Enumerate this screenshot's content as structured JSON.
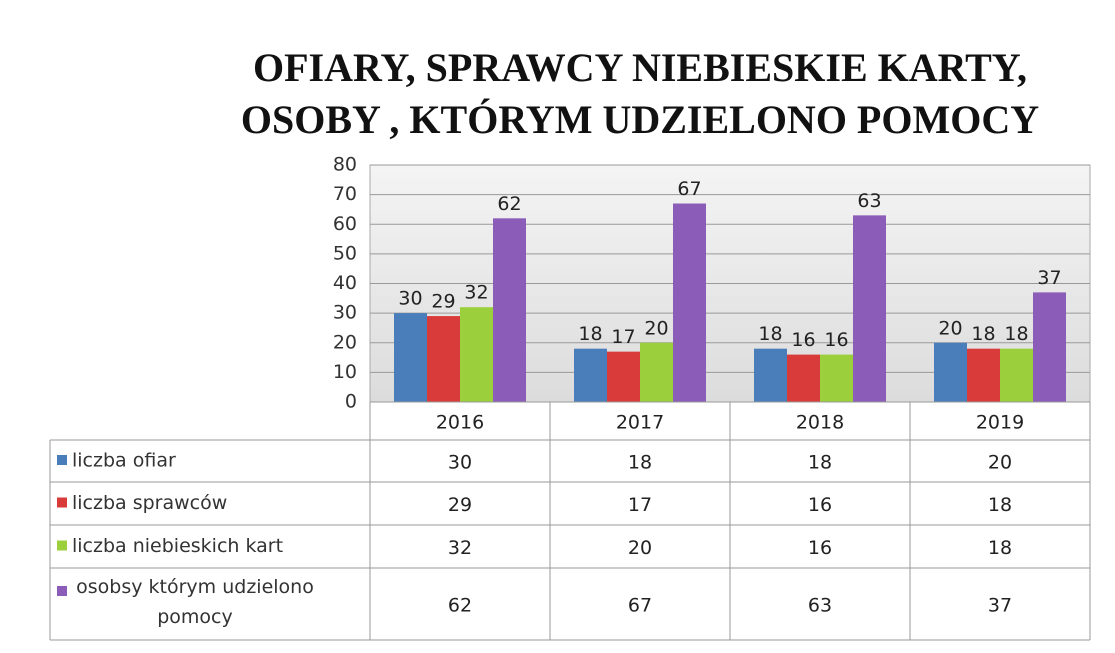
{
  "chart_data": {
    "type": "bar",
    "title": [
      "OFIARY, SPRAWCY  NIEBIESKIE  KARTY,",
      "OSOBY , KTÓRYM  UDZIELONO  POMOCY"
    ],
    "categories": [
      "2016",
      "2017",
      "2018",
      "2019"
    ],
    "series": [
      {
        "name": "liczba ofiar",
        "color": "#4a7ebb",
        "values": [
          30,
          18,
          18,
          20
        ]
      },
      {
        "name": "liczba sprawców",
        "color": "#d93a3a",
        "values": [
          29,
          17,
          16,
          18
        ]
      },
      {
        "name": "liczba niebieskich kart",
        "color": "#9bcf3c",
        "values": [
          32,
          20,
          16,
          18
        ]
      },
      {
        "name": "osobsy którym udzielono pomocy",
        "color": "#8b5cb8",
        "values": [
          62,
          67,
          63,
          37
        ]
      }
    ],
    "ylim": [
      0,
      80
    ],
    "yticks": [
      0,
      10,
      20,
      30,
      40,
      50,
      60,
      70,
      80
    ],
    "grid": true
  }
}
